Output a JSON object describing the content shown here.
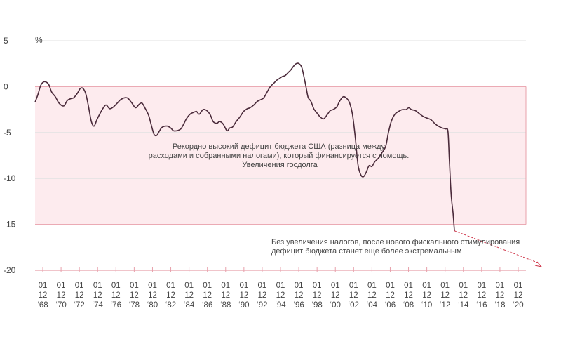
{
  "chart_data": {
    "type": "line",
    "title": "",
    "xlabel": "",
    "ylabel": "%",
    "ylim": [
      -20,
      5
    ],
    "yticks": [
      5,
      0,
      -5,
      -10,
      -15,
      -20
    ],
    "ytick_labels": [
      "5",
      "0",
      "-5",
      "-10",
      "-15",
      "-20"
    ],
    "x_tick_labels": [
      [
        "01",
        "12",
        "‘68"
      ],
      [
        "01",
        "12",
        "‘70"
      ],
      [
        "01",
        "12",
        "‘72"
      ],
      [
        "01",
        "12",
        "‘74"
      ],
      [
        "01",
        "12",
        "‘76"
      ],
      [
        "01",
        "12",
        "‘78"
      ],
      [
        "01",
        "12",
        "‘80"
      ],
      [
        "01",
        "12",
        "‘82"
      ],
      [
        "01",
        "12",
        "‘84"
      ],
      [
        "01",
        "12",
        "‘86"
      ],
      [
        "01",
        "12",
        "‘88"
      ],
      [
        "01",
        "12",
        "‘90"
      ],
      [
        "01",
        "12",
        "‘92"
      ],
      [
        "01",
        "12",
        "‘94"
      ],
      [
        "01",
        "12",
        "‘96"
      ],
      [
        "01",
        "12",
        "‘98"
      ],
      [
        "01",
        "12",
        "‘00"
      ],
      [
        "01",
        "12",
        "‘02"
      ],
      [
        "01",
        "12",
        "‘04"
      ],
      [
        "01",
        "12",
        "‘06"
      ],
      [
        "01",
        "12",
        "‘08"
      ],
      [
        "01",
        "12",
        "‘10"
      ],
      [
        "01",
        "12",
        "‘12"
      ],
      [
        "01",
        "12",
        "‘14"
      ],
      [
        "01",
        "12",
        "‘16"
      ],
      [
        "01",
        "12",
        "‘18"
      ],
      [
        "01",
        "12",
        "‘20"
      ]
    ],
    "x_range": [
      1968.0,
      2021.2
    ],
    "shaded_band": [
      -15,
      0
    ],
    "grid": true,
    "series": [
      {
        "name": "",
        "color": "#4a2a3a",
        "points": [
          [
            1968.0,
            -1.7
          ],
          [
            1968.3,
            -0.9
          ],
          [
            1968.6,
            0.1
          ],
          [
            1968.9,
            0.5
          ],
          [
            1969.2,
            0.5
          ],
          [
            1969.5,
            0.2
          ],
          [
            1969.8,
            -0.6
          ],
          [
            1970.2,
            -1.1
          ],
          [
            1970.6,
            -1.8
          ],
          [
            1971.1,
            -2.1
          ],
          [
            1971.5,
            -1.5
          ],
          [
            1971.9,
            -1.3
          ],
          [
            1972.2,
            -1.2
          ],
          [
            1972.6,
            -0.7
          ],
          [
            1972.9,
            -0.2
          ],
          [
            1973.2,
            -0.2
          ],
          [
            1973.5,
            -0.8
          ],
          [
            1973.8,
            -2.2
          ],
          [
            1974.1,
            -3.8
          ],
          [
            1974.4,
            -4.3
          ],
          [
            1974.7,
            -3.6
          ],
          [
            1975.0,
            -3.0
          ],
          [
            1975.4,
            -2.3
          ],
          [
            1975.7,
            -2.0
          ],
          [
            1976.1,
            -2.4
          ],
          [
            1976.5,
            -2.2
          ],
          [
            1976.9,
            -1.8
          ],
          [
            1977.3,
            -1.4
          ],
          [
            1977.8,
            -1.2
          ],
          [
            1978.1,
            -1.3
          ],
          [
            1978.5,
            -1.8
          ],
          [
            1978.9,
            -2.3
          ],
          [
            1979.3,
            -1.9
          ],
          [
            1979.6,
            -1.8
          ],
          [
            1979.9,
            -2.3
          ],
          [
            1980.3,
            -3.1
          ],
          [
            1980.6,
            -4.2
          ],
          [
            1980.9,
            -5.2
          ],
          [
            1981.2,
            -5.3
          ],
          [
            1981.5,
            -4.8
          ],
          [
            1981.8,
            -4.4
          ],
          [
            1982.3,
            -4.3
          ],
          [
            1982.7,
            -4.5
          ],
          [
            1983.0,
            -4.8
          ],
          [
            1983.4,
            -4.8
          ],
          [
            1983.8,
            -4.6
          ],
          [
            1984.1,
            -4.1
          ],
          [
            1984.4,
            -3.5
          ],
          [
            1984.8,
            -3.0
          ],
          [
            1985.2,
            -2.8
          ],
          [
            1985.5,
            -2.7
          ],
          [
            1985.8,
            -3.0
          ],
          [
            1986.2,
            -2.5
          ],
          [
            1986.6,
            -2.6
          ],
          [
            1987.0,
            -3.1
          ],
          [
            1987.3,
            -3.8
          ],
          [
            1987.7,
            -4.0
          ],
          [
            1988.0,
            -3.8
          ],
          [
            1988.4,
            -4.1
          ],
          [
            1988.8,
            -4.8
          ],
          [
            1989.1,
            -4.5
          ],
          [
            1989.4,
            -4.4
          ],
          [
            1989.8,
            -3.8
          ],
          [
            1990.2,
            -3.3
          ],
          [
            1990.6,
            -2.7
          ],
          [
            1991.0,
            -2.4
          ],
          [
            1991.3,
            -2.3
          ],
          [
            1991.7,
            -2.0
          ],
          [
            1992.1,
            -1.6
          ],
          [
            1992.5,
            -1.4
          ],
          [
            1992.8,
            -1.2
          ],
          [
            1993.2,
            -0.5
          ],
          [
            1993.5,
            0.0
          ],
          [
            1993.9,
            0.4
          ],
          [
            1994.2,
            0.7
          ],
          [
            1994.5,
            0.9
          ],
          [
            1994.8,
            1.1
          ],
          [
            1995.1,
            1.2
          ],
          [
            1995.4,
            1.5
          ],
          [
            1995.7,
            1.8
          ],
          [
            1996.0,
            2.2
          ],
          [
            1996.3,
            2.5
          ],
          [
            1996.6,
            2.5
          ],
          [
            1996.9,
            2.1
          ],
          [
            1997.2,
            0.8
          ],
          [
            1997.4,
            -0.2
          ],
          [
            1997.6,
            -1.2
          ],
          [
            1997.9,
            -1.6
          ],
          [
            1998.2,
            -2.4
          ],
          [
            1998.5,
            -2.8
          ],
          [
            1998.9,
            -3.3
          ],
          [
            1999.3,
            -3.5
          ],
          [
            1999.7,
            -3.0
          ],
          [
            2000.0,
            -2.6
          ],
          [
            2000.3,
            -2.5
          ],
          [
            2000.7,
            -2.2
          ],
          [
            2001.0,
            -1.6
          ],
          [
            2001.4,
            -1.1
          ],
          [
            2001.8,
            -1.3
          ],
          [
            2002.1,
            -1.8
          ],
          [
            2002.4,
            -3.0
          ],
          [
            2002.7,
            -5.5
          ],
          [
            2003.0,
            -8.5
          ],
          [
            2003.3,
            -9.6
          ],
          [
            2003.6,
            -9.8
          ],
          [
            2003.9,
            -9.3
          ],
          [
            2004.2,
            -8.6
          ],
          [
            2004.5,
            -8.7
          ],
          [
            2004.8,
            -8.2
          ],
          [
            2005.2,
            -7.8
          ],
          [
            2005.6,
            -7.2
          ],
          [
            2006.0,
            -6.5
          ],
          [
            2006.3,
            -5.0
          ],
          [
            2006.6,
            -3.8
          ],
          [
            2007.0,
            -3.0
          ],
          [
            2007.4,
            -2.7
          ],
          [
            2007.8,
            -2.5
          ],
          [
            2008.2,
            -2.5
          ],
          [
            2008.5,
            -2.3
          ],
          [
            2008.8,
            -2.5
          ],
          [
            2009.2,
            -2.6
          ],
          [
            2009.6,
            -2.9
          ],
          [
            2010.0,
            -3.2
          ],
          [
            2010.4,
            -3.4
          ],
          [
            2010.9,
            -3.6
          ],
          [
            2011.3,
            -4.0
          ],
          [
            2011.7,
            -4.3
          ],
          [
            2012.1,
            -4.5
          ],
          [
            2012.5,
            -4.6
          ],
          [
            2012.75,
            -4.9
          ],
          [
            2012.9,
            -8.0
          ],
          [
            2013.1,
            -11.8
          ],
          [
            2013.3,
            -13.8
          ],
          [
            2013.45,
            -15.7
          ]
        ]
      }
    ],
    "annotations": [
      {
        "lines": [
          "Рекордно высокий дефицит бюджета США (разница между",
          "расходами и собранными налогами), который финансируется с помощь.",
          "Увеличения госдолга"
        ]
      },
      {
        "lines": [
          "Без увеличения налогов, после нового фискального стимулирования",
          "дефицит бюджета станет еще более экстремальным"
        ]
      }
    ],
    "colors": {
      "line": "#4a2a3a",
      "band_fill": "#fdebee",
      "band_edge": "#e8a0ab",
      "grid": "#e2e2e2",
      "arrow": "#d03a4e"
    }
  }
}
